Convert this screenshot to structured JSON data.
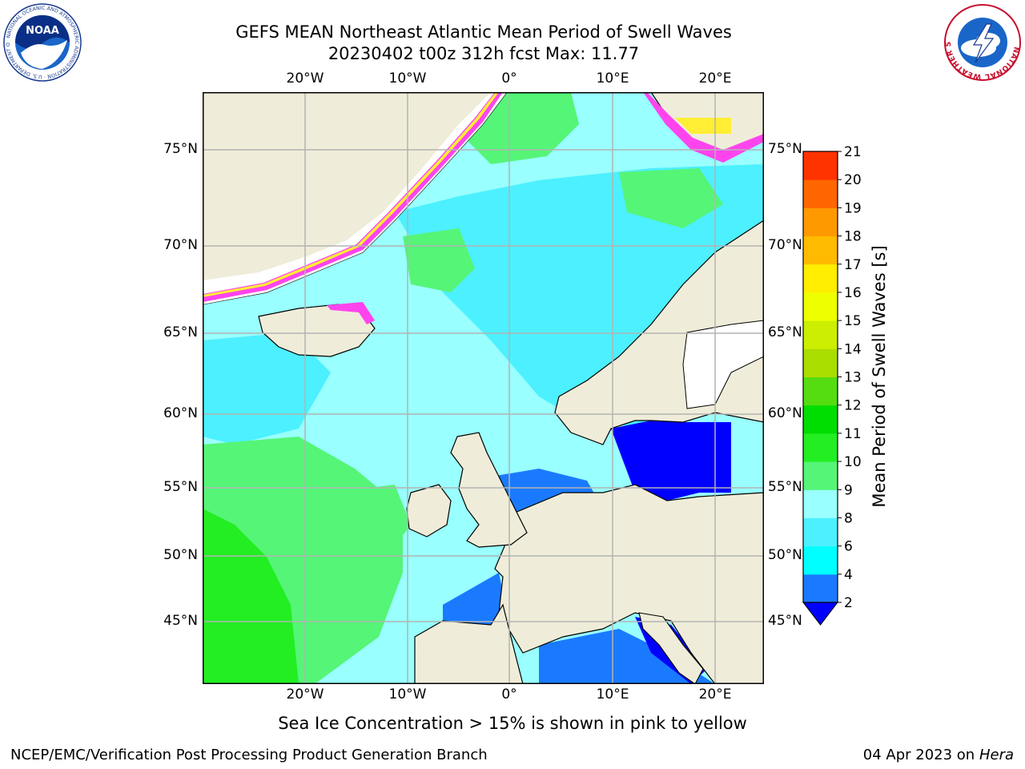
{
  "header": {
    "title_line1": "GEFS MEAN Northeast Atlantic Mean Period of Swell Waves",
    "title_line2": "20230402 t00z 312h fcst   Max: 11.77"
  },
  "logos": {
    "left_org": "NOAA",
    "left_ring_text": "NATIONAL OCEANIC AND ATMOSPHERIC ADMINISTRATION · U.S. DEPARTMENT OF COMMERCE",
    "right_ring_text": "NATIONAL WEATHER SERVICE"
  },
  "map": {
    "lon_labels": [
      "20°W",
      "10°W",
      "0°",
      "10°E",
      "20°E"
    ],
    "lat_labels": [
      "75°N",
      "70°N",
      "65°N",
      "60°N",
      "55°N",
      "50°N",
      "45°N"
    ],
    "colors": {
      "land": "#efedd9",
      "grid": "#b3b3b3",
      "ocean_light": "#99ffff",
      "ocean_cyan": "#4cf0ff",
      "ocean_green": "#55f577",
      "ocean_bright_green": "#22ee22",
      "ocean_blue": "#1a7aff",
      "ocean_deep_blue": "#0000ff",
      "ice_pink": "#ff44ee",
      "ice_yellow": "#ffee33"
    }
  },
  "colorbar": {
    "label": "Mean Period of Swell Waves [s]",
    "ticks": [
      "2",
      "4",
      "6",
      "8",
      "9",
      "10",
      "11",
      "12",
      "13",
      "14",
      "15",
      "16",
      "17",
      "18",
      "19",
      "20",
      "21"
    ],
    "colors": [
      "#1a7aff",
      "#00ffff",
      "#4cf0ff",
      "#99ffff",
      "#55f577",
      "#22ee22",
      "#00dd00",
      "#55dd11",
      "#aadd00",
      "#ccee00",
      "#eeff00",
      "#ffee00",
      "#ffbb00",
      "#ff9900",
      "#ff6600",
      "#ff3300"
    ],
    "under_color": "#0000ff"
  },
  "footer": {
    "ice_note": "Sea Ice Concentration > 15% is shown in pink to yellow",
    "branch": "NCEP/EMC/Verification Post Processing Product Generation Branch",
    "date": "04 Apr 2023 on",
    "machine": "Hera"
  }
}
